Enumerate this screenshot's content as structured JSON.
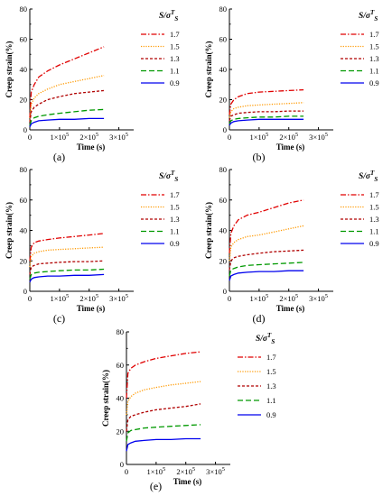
{
  "legend_title": {
    "base": "S/σ",
    "sup": "T",
    "sub": "S"
  },
  "y_axis_label": "Creep strain(%)",
  "x_axis_label": "Time (s)",
  "x_tick_labels": [
    "0",
    "1×10",
    "2×10",
    "3×10"
  ],
  "x_tick_exponent": "5",
  "series_style": [
    {
      "name": "1.7",
      "color": "#e00000",
      "dash": "6,2,1.5,2"
    },
    {
      "name": "1.5",
      "color": "#ff9900",
      "dash": "1.2,1.5"
    },
    {
      "name": "1.3",
      "color": "#b00000",
      "dash": "3,2"
    },
    {
      "name": "1.1",
      "color": "#009900",
      "dash": "6,3"
    },
    {
      "name": "0.9",
      "color": "#0000ee",
      "dash": ""
    }
  ],
  "chart_data": [
    {
      "type": "line",
      "panel": "(a)",
      "xlabel": "Time (s)",
      "ylabel": "Creep strain(%)",
      "xlim": [
        0,
        350000
      ],
      "ylim": [
        0,
        80
      ],
      "yticks": [
        0,
        20,
        40,
        60,
        80
      ],
      "xticks": [
        0,
        100000,
        200000,
        300000
      ],
      "legend": "top-right",
      "x": [
        0,
        5000,
        15000,
        30000,
        60000,
        100000,
        150000,
        200000,
        250000
      ],
      "series": [
        {
          "name": "1.7",
          "values": [
            8,
            25,
            30,
            35,
            39,
            43,
            47,
            51,
            55
          ]
        },
        {
          "name": "1.5",
          "values": [
            6,
            17,
            21,
            24,
            27,
            30,
            32,
            34,
            36
          ]
        },
        {
          "name": "1.3",
          "values": [
            5,
            12,
            15,
            17,
            20,
            22,
            24,
            25,
            26
          ]
        },
        {
          "name": "1.1",
          "values": [
            3,
            6,
            8,
            9,
            10,
            11,
            12,
            13,
            13.5
          ]
        },
        {
          "name": "0.9",
          "values": [
            2,
            4,
            5,
            6,
            6.5,
            7,
            7,
            7.5,
            7.5
          ]
        }
      ]
    },
    {
      "type": "line",
      "panel": "(b)",
      "xlabel": "Time (s)",
      "ylabel": "Creep strain(%)",
      "xlim": [
        0,
        350000
      ],
      "ylim": [
        0,
        80
      ],
      "yticks": [
        0,
        20,
        40,
        60,
        80
      ],
      "xticks": [
        0,
        100000,
        200000,
        300000
      ],
      "legend": "top-right",
      "x": [
        0,
        5000,
        15000,
        30000,
        60000,
        100000,
        150000,
        200000,
        250000
      ],
      "series": [
        {
          "name": "1.7",
          "values": [
            10,
            17,
            20,
            22,
            24,
            25,
            25.5,
            26,
            26.5
          ]
        },
        {
          "name": "1.5",
          "values": [
            8,
            12,
            14,
            15,
            16,
            16.5,
            17,
            17.5,
            18
          ]
        },
        {
          "name": "1.3",
          "values": [
            6,
            9,
            10,
            11,
            11.5,
            12,
            12,
            12.5,
            12.5
          ]
        },
        {
          "name": "1.1",
          "values": [
            4,
            6,
            7,
            7.5,
            8,
            8.5,
            8.5,
            9,
            9
          ]
        },
        {
          "name": "0.9",
          "values": [
            3,
            4.5,
            5.5,
            6,
            6.5,
            7,
            7,
            7,
            7
          ]
        }
      ]
    },
    {
      "type": "line",
      "panel": "(c)",
      "xlabel": "Time (s)",
      "ylabel": "Creep strain(%)",
      "xlim": [
        0,
        350000
      ],
      "ylim": [
        0,
        80
      ],
      "yticks": [
        0,
        20,
        40,
        60,
        80
      ],
      "xticks": [
        0,
        100000,
        200000,
        300000
      ],
      "legend": "top-right",
      "x": [
        0,
        5000,
        15000,
        30000,
        60000,
        100000,
        150000,
        200000,
        250000
      ],
      "series": [
        {
          "name": "1.7",
          "values": [
            20,
            29,
            32,
            33,
            34,
            35,
            36,
            37,
            38
          ]
        },
        {
          "name": "1.5",
          "values": [
            16,
            23,
            25,
            26,
            27,
            27.5,
            28,
            28.5,
            29
          ]
        },
        {
          "name": "1.3",
          "values": [
            11,
            16,
            17,
            18,
            18.5,
            19,
            19.5,
            19.5,
            20
          ]
        },
        {
          "name": "1.1",
          "values": [
            8,
            11,
            12,
            12.5,
            13,
            13.5,
            14,
            14,
            14.5
          ]
        },
        {
          "name": "0.9",
          "values": [
            6,
            8,
            9,
            9.5,
            10,
            10,
            10.5,
            10.5,
            11
          ]
        }
      ]
    },
    {
      "type": "line",
      "panel": "(d)",
      "xlabel": "Time (s)",
      "ylabel": "Creep strain(%)",
      "xlim": [
        0,
        350000
      ],
      "ylim": [
        0,
        80
      ],
      "yticks": [
        0,
        20,
        40,
        60,
        80
      ],
      "xticks": [
        0,
        100000,
        200000,
        300000
      ],
      "legend": "top-right",
      "x": [
        0,
        5000,
        15000,
        30000,
        60000,
        100000,
        150000,
        200000,
        250000
      ],
      "series": [
        {
          "name": "1.7",
          "values": [
            25,
            38,
            43,
            47,
            50,
            52,
            55,
            58,
            60
          ]
        },
        {
          "name": "1.5",
          "values": [
            20,
            29,
            32,
            34,
            36,
            37,
            39,
            41,
            43
          ]
        },
        {
          "name": "1.3",
          "values": [
            14,
            20,
            22,
            23,
            24,
            25,
            26,
            26.5,
            27
          ]
        },
        {
          "name": "1.1",
          "values": [
            10,
            14,
            15,
            16,
            17,
            17.5,
            18,
            18.5,
            19
          ]
        },
        {
          "name": "0.9",
          "values": [
            7,
            10,
            11,
            12,
            12.5,
            13,
            13,
            13.5,
            13.5
          ]
        }
      ]
    },
    {
      "type": "line",
      "panel": "(e)",
      "xlabel": "Time (s)",
      "ylabel": "Creep strain(%)",
      "xlim": [
        0,
        350000
      ],
      "ylim": [
        0,
        80
      ],
      "yticks": [
        0,
        20,
        40,
        60,
        80
      ],
      "xticks": [
        0,
        100000,
        200000,
        300000
      ],
      "legend": "top-right",
      "x": [
        0,
        5000,
        15000,
        30000,
        60000,
        100000,
        150000,
        200000,
        250000
      ],
      "series": [
        {
          "name": "1.7",
          "values": [
            40,
            55,
            58,
            60,
            62,
            64,
            65.5,
            67,
            68
          ]
        },
        {
          "name": "1.5",
          "values": [
            30,
            38,
            41,
            43,
            45,
            46.5,
            48,
            49,
            50
          ]
        },
        {
          "name": "1.3",
          "values": [
            20,
            27,
            29,
            30,
            31.5,
            33,
            34,
            35,
            36.5
          ]
        },
        {
          "name": "1.1",
          "values": [
            14,
            19,
            20.5,
            21,
            22,
            22.5,
            23,
            23.5,
            24
          ]
        },
        {
          "name": "0.9",
          "values": [
            8,
            12,
            13,
            14,
            14.5,
            15,
            15,
            15.5,
            15.5
          ]
        }
      ]
    }
  ]
}
